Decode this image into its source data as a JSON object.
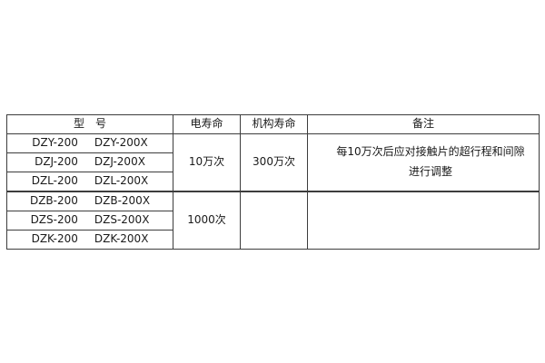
{
  "colors": {
    "background": "#ffffff",
    "border": "#3d3d3d",
    "text": "#1a1a1a"
  },
  "table": {
    "headers": {
      "model": "型　号",
      "electrical_life": "电寿命",
      "mechanical_life": "机构寿命",
      "remarks": "备注"
    },
    "groups": [
      {
        "models": [
          [
            "DZY-200",
            "DZY-200X"
          ],
          [
            "DZJ-200",
            "DZJ-200X"
          ],
          [
            "DZL-200",
            "DZL-200X"
          ]
        ],
        "electrical_life": "10万次",
        "mechanical_life": "300万次",
        "remarks_line1": "每10万次后应对接触片的超行程和间隙",
        "remarks_line2": "进行调整"
      },
      {
        "models": [
          [
            "DZB-200",
            "DZB-200X"
          ],
          [
            "DZS-200",
            "DZS-200X"
          ],
          [
            "DZK-200",
            "DZK-200X"
          ]
        ],
        "electrical_life": "1000次",
        "mechanical_life": "",
        "remarks_line1": "",
        "remarks_line2": ""
      }
    ]
  }
}
